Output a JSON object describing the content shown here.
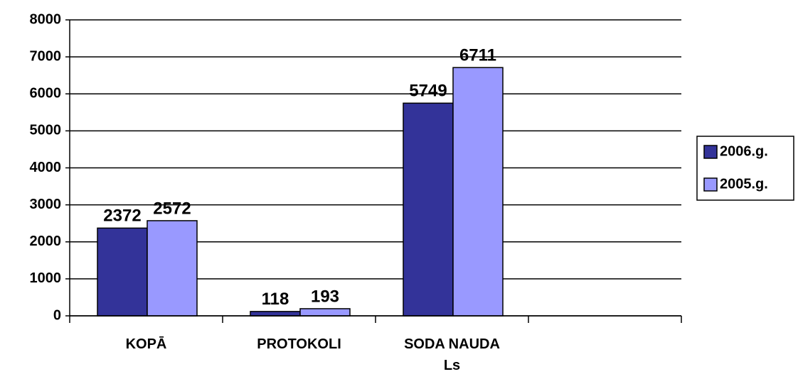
{
  "chart_data": {
    "type": "bar",
    "categories": [
      "KOPĀ",
      "PROTOKOLI",
      "SODA NAUDA Ls",
      null
    ],
    "series": [
      {
        "name": "2006.g.",
        "color": "#333399",
        "values": [
          2372,
          118,
          5749,
          null
        ]
      },
      {
        "name": "2005.g.",
        "color": "#9999ff",
        "values": [
          2572,
          193,
          6711,
          null
        ]
      }
    ],
    "ylim": [
      0,
      8000
    ],
    "yticks": [
      0,
      1000,
      2000,
      3000,
      4000,
      5000,
      6000,
      7000,
      8000
    ],
    "grid": true,
    "legend": "right"
  }
}
